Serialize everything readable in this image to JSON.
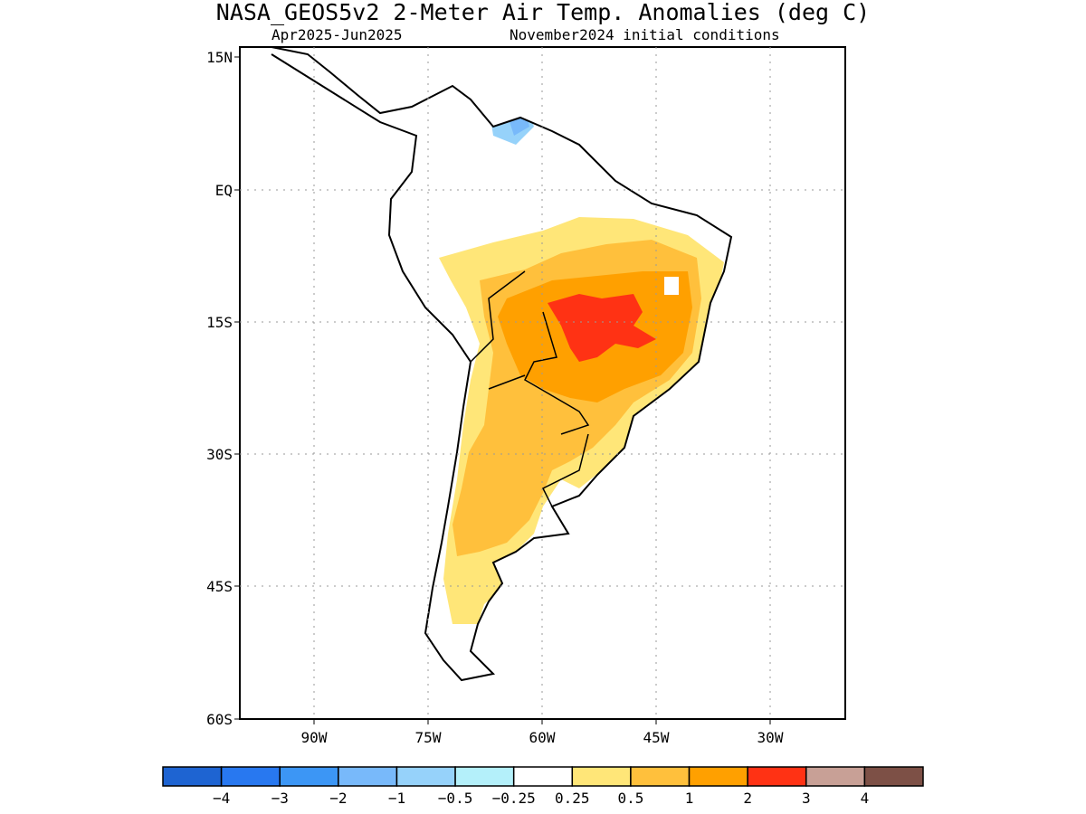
{
  "title": "NASA_GEOS5v2 2-Meter Air Temp. Anomalies (deg C)",
  "subtitle_left": "Apr2025-Jun2025",
  "subtitle_right": "November2024 initial conditions",
  "lat_ticks": [
    "15N",
    "EQ",
    "15S",
    "30S",
    "45S",
    "60S"
  ],
  "lon_ticks": [
    "90W",
    "75W",
    "60W",
    "45W",
    "30W"
  ],
  "colorbar": {
    "colors": [
      "#1e64d2",
      "#2878f0",
      "#3c96f5",
      "#78b9fa",
      "#96d2fa",
      "#b4f0fa",
      "#ffffff",
      "#ffe678",
      "#ffc03c",
      "#ffa000",
      "#ff3214",
      "#c8a096",
      "#7d5046"
    ],
    "labels": [
      "-4",
      "-3",
      "-2",
      "-1",
      "-0.5",
      "-0.25",
      "0.25",
      "0.5",
      "1",
      "2",
      "3",
      "4"
    ]
  },
  "colors": {
    "land_outline": "#000000",
    "grid": "#9a9a9a"
  }
}
